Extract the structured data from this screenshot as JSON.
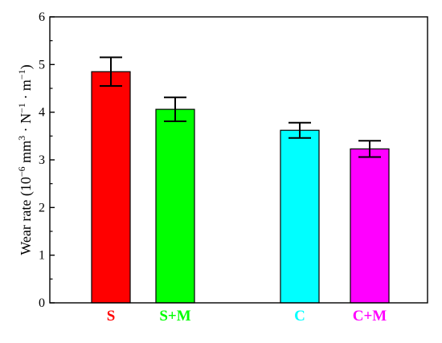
{
  "chart_data": {
    "type": "bar",
    "categories": [
      "S",
      "S+M",
      "C",
      "C+M"
    ],
    "values": [
      4.85,
      4.06,
      3.62,
      3.23
    ],
    "errors": [
      0.3,
      0.25,
      0.16,
      0.17
    ],
    "bar_colors": [
      "#FF0000",
      "#00FF00",
      "#00FFFF",
      "#FF00FF"
    ],
    "label_colors": [
      "#FF0000",
      "#00FF00",
      "#00FFFF",
      "#FF00FF"
    ],
    "ylabel": {
      "prefix": "Wear rate (10",
      "exp1": "−6",
      "mid": " mm",
      "exp2": "3",
      "mid2": " · N",
      "exp3": "−1",
      "mid3": " · m",
      "exp4": "−1",
      "suffix": ")"
    },
    "yticks": [
      "0",
      "1",
      "2",
      "3",
      "4",
      "5",
      "6"
    ],
    "ylim": [
      0,
      6
    ],
    "grid": false
  }
}
